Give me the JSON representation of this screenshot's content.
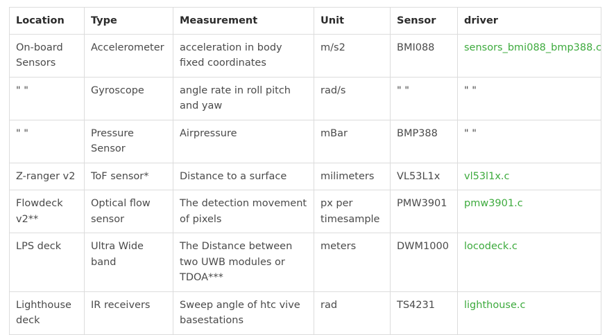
{
  "table": {
    "headers": [
      "Location",
      "Type",
      "Measurement",
      "Unit",
      "Sensor",
      "driver"
    ],
    "rows": [
      [
        "On-board Sensors",
        "Accelerometer",
        "acceleration in body fixed coordinates",
        "m/s2",
        "BMI088",
        "sensors_bmi088_bmp388.c"
      ],
      [
        "\" \"",
        "Gyroscope",
        "angle rate in roll pitch and yaw",
        "rad/s",
        "\" \"",
        "\" \""
      ],
      [
        "\" \"",
        "Pressure Sensor",
        "Airpressure",
        "mBar",
        "BMP388",
        "\" \""
      ],
      [
        "Z-ranger v2",
        "ToF sensor*",
        "Distance to a surface",
        "milimeters",
        "VL53L1x",
        "vl53l1x.c"
      ],
      [
        "Flowdeck v2**",
        "Optical flow sensor",
        "The detection movement of pixels",
        "px per timesample",
        "PMW3901",
        "pmw3901.c"
      ],
      [
        "LPS deck",
        "Ultra Wide band",
        "The Distance between two UWB modules or TDOA***",
        "meters",
        "DWM1000",
        "locodeck.c"
      ],
      [
        "Lighthouse deck",
        "IR receivers",
        "Sweep angle of htc vive basestations",
        "rad",
        "TS4231",
        "lighthouse.c"
      ]
    ],
    "link_color": "#3daa3d"
  }
}
